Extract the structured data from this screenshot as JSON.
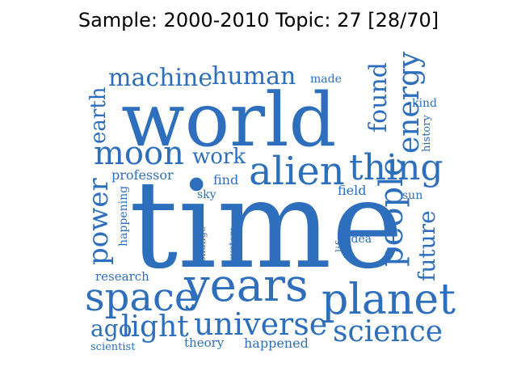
{
  "title": "Sample: 2000-2010 Topic: 27 [28/70]",
  "word_color": "#2e6fbd",
  "words": [
    {
      "text": "time",
      "orientation": "horizontal"
    },
    {
      "text": "world",
      "orientation": "horizontal"
    },
    {
      "text": "years",
      "orientation": "horizontal"
    },
    {
      "text": "planet",
      "orientation": "horizontal"
    },
    {
      "text": "space",
      "orientation": "horizontal"
    },
    {
      "text": "alien",
      "orientation": "horizontal"
    },
    {
      "text": "thing",
      "orientation": "horizontal"
    },
    {
      "text": "universe",
      "orientation": "horizontal"
    },
    {
      "text": "science",
      "orientation": "horizontal"
    },
    {
      "text": "people",
      "orientation": "vertical"
    },
    {
      "text": "moon",
      "orientation": "horizontal"
    },
    {
      "text": "energy",
      "orientation": "vertical"
    },
    {
      "text": "machine",
      "orientation": "horizontal"
    },
    {
      "text": "human",
      "orientation": "horizontal"
    },
    {
      "text": "light",
      "orientation": "horizontal"
    },
    {
      "text": "power",
      "orientation": "vertical"
    },
    {
      "text": "found",
      "orientation": "vertical"
    },
    {
      "text": "future",
      "orientation": "vertical"
    },
    {
      "text": "work",
      "orientation": "horizontal"
    },
    {
      "text": "earth",
      "orientation": "vertical"
    },
    {
      "text": "ago",
      "orientation": "horizontal"
    },
    {
      "text": "professor",
      "orientation": "horizontal"
    },
    {
      "text": "made",
      "orientation": "horizontal"
    },
    {
      "text": "kind",
      "orientation": "horizontal"
    },
    {
      "text": "history",
      "orientation": "vertical"
    },
    {
      "text": "field",
      "orientation": "horizontal"
    },
    {
      "text": "sun",
      "orientation": "horizontal"
    },
    {
      "text": "find",
      "orientation": "horizontal"
    },
    {
      "text": "sky",
      "orientation": "horizontal"
    },
    {
      "text": "happening",
      "orientation": "vertical"
    },
    {
      "text": "change",
      "orientation": "vertical"
    },
    {
      "text": "system",
      "orientation": "vertical"
    },
    {
      "text": "life",
      "orientation": "vertical"
    },
    {
      "text": "idea",
      "orientation": "horizontal"
    },
    {
      "text": "research",
      "orientation": "horizontal"
    },
    {
      "text": "theory",
      "orientation": "horizontal"
    },
    {
      "text": "happened",
      "orientation": "horizontal"
    },
    {
      "text": "scientist",
      "orientation": "horizontal"
    }
  ]
}
